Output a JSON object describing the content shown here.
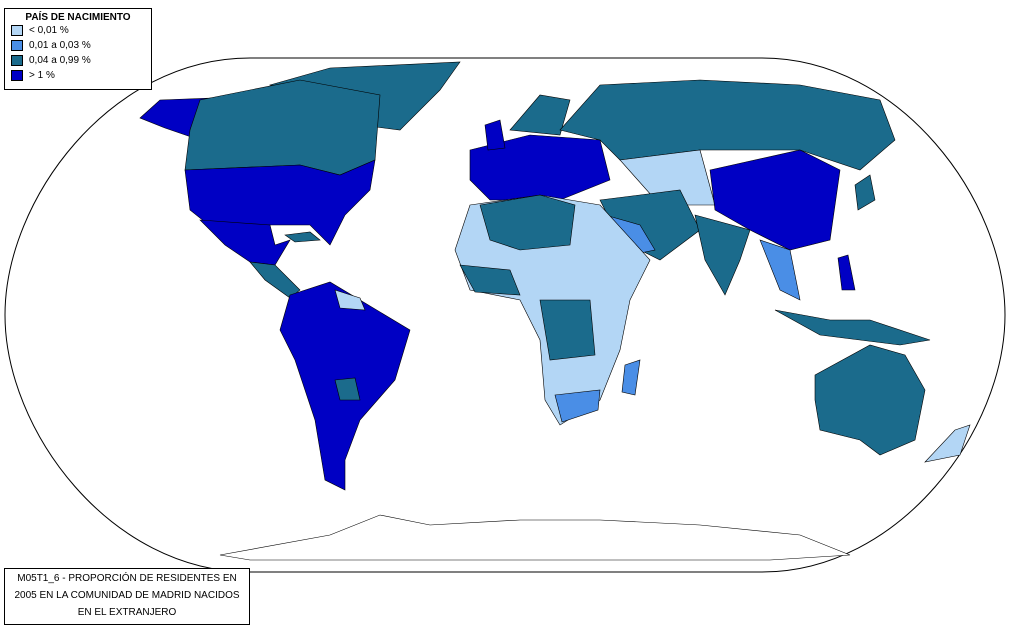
{
  "legend": {
    "title": "PAÍS DE NACIMIENTO",
    "items": [
      {
        "label": "< 0,01 %",
        "color": "#b3d6f5"
      },
      {
        "label": "0,01 a 0,03 %",
        "color": "#4a8ee6"
      },
      {
        "label": "0,04 a 0,99 %",
        "color": "#1b6b8c"
      },
      {
        "label": "> 1 %",
        "color": "#0000c4"
      }
    ]
  },
  "caption": {
    "lines": [
      "M05T1_6 - PROPORCIÓN DE RESIDENTES EN",
      "2005 EN LA COMUNIDAD DE MADRID NACIDOS",
      "EN EL EXTRANJERO"
    ]
  }
}
